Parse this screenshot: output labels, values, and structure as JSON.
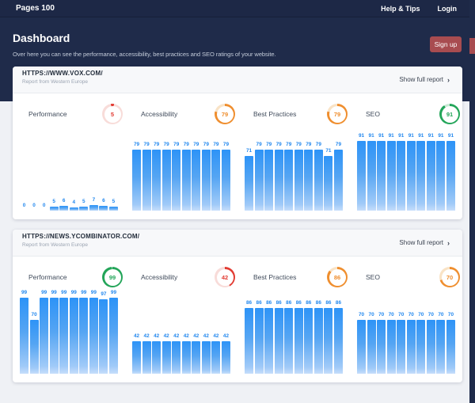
{
  "navbar": {
    "brand": "Pages 100",
    "links": [
      {
        "label": "Help & Tips"
      },
      {
        "label": "Login"
      }
    ]
  },
  "header": {
    "title": "Dashboard",
    "subtitle": "Over here you can see the performance, accessibility, best practices and SEO ratings of your website.",
    "signup_label": "Sign up"
  },
  "colors": {
    "navy": "#1f2b4a",
    "signup_red": "#a84c50",
    "bar_top": "#2d93f7",
    "bar_bottom": "#c6defb",
    "bar_label": "#2187ee",
    "status": {
      "red": {
        "main": "#e23b32",
        "track": "#f8dcd9"
      },
      "orange": {
        "main": "#ef8e2e",
        "track": "#f9e3c6"
      },
      "green": {
        "main": "#23a559",
        "track": "#c8e9d4"
      }
    }
  },
  "sites": [
    {
      "url": "HTTPS://WWW.VOX.COM/",
      "note": "Report from Western Europe",
      "link_label": "Show full report",
      "chart_data": [
        {
          "type": "bar",
          "name": "Performance",
          "score": 5,
          "status": "red",
          "values": [
            0,
            0,
            0,
            5,
            6,
            4,
            5,
            7,
            6,
            5
          ]
        },
        {
          "type": "bar",
          "name": "Accessibility",
          "score": 79,
          "status": "orange",
          "values": [
            79,
            79,
            79,
            79,
            79,
            79,
            79,
            79,
            79,
            79
          ]
        },
        {
          "type": "bar",
          "name": "Best Practices",
          "score": 79,
          "status": "orange",
          "values": [
            71,
            79,
            79,
            79,
            79,
            79,
            79,
            79,
            71,
            79
          ]
        },
        {
          "type": "bar",
          "name": "SEO",
          "score": 91,
          "status": "green",
          "values": [
            91,
            91,
            91,
            91,
            91,
            91,
            91,
            91,
            91,
            91
          ]
        }
      ]
    },
    {
      "url": "HTTPS://NEWS.YCOMBINATOR.COM/",
      "note": "Report from Western Europe",
      "link_label": "Show full report",
      "chart_data": [
        {
          "type": "bar",
          "name": "Performance",
          "score": 99,
          "status": "green",
          "values": [
            99,
            70,
            99,
            99,
            99,
            99,
            99,
            99,
            97,
            99
          ]
        },
        {
          "type": "bar",
          "name": "Accessibility",
          "score": 42,
          "status": "red",
          "values": [
            42,
            42,
            42,
            42,
            42,
            42,
            42,
            42,
            42,
            42
          ]
        },
        {
          "type": "bar",
          "name": "Best Practices",
          "score": 86,
          "status": "orange",
          "values": [
            86,
            86,
            86,
            86,
            86,
            86,
            86,
            86,
            86,
            86
          ]
        },
        {
          "type": "bar",
          "name": "SEO",
          "score": 70,
          "status": "orange",
          "values": [
            70,
            70,
            70,
            70,
            70,
            70,
            70,
            70,
            70,
            70
          ]
        }
      ]
    }
  ]
}
